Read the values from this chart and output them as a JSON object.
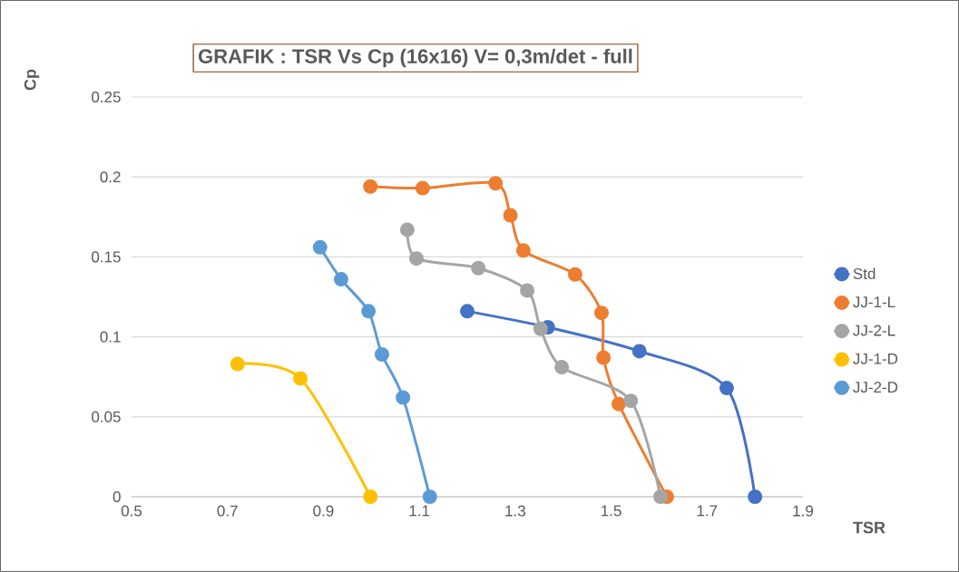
{
  "chart_data": {
    "type": "line",
    "title": "GRAFIK : TSR Vs Cp  (16x16) V= 0,3m/det - full",
    "xlabel": "TSR",
    "ylabel": "Cp",
    "xlim": [
      0.5,
      1.9
    ],
    "xticks": [
      0.5,
      0.7,
      0.9,
      1.1,
      1.3,
      1.5,
      1.7,
      1.9
    ],
    "ylim": [
      0,
      0.25
    ],
    "yticks": [
      0,
      0.05,
      0.1,
      0.15,
      0.2,
      0.25
    ],
    "grid": "y",
    "legend": "right",
    "marker": "circle",
    "line_style": "solid",
    "series": [
      {
        "name": "Std",
        "color": "#4472c4",
        "x": [
          1.2,
          1.368,
          1.559,
          1.741,
          1.8
        ],
        "values": [
          0.116,
          0.106,
          0.091,
          0.068,
          0
        ]
      },
      {
        "name": "JJ-1-L",
        "color": "#ed7d31",
        "x": [
          0.998,
          1.107,
          1.259,
          1.29,
          1.317,
          1.425,
          1.48,
          1.484,
          1.516,
          1.616
        ],
        "values": [
          0.194,
          0.193,
          0.196,
          0.176,
          0.154,
          0.139,
          0.115,
          0.087,
          0.058,
          0
        ]
      },
      {
        "name": "JJ-2-L",
        "color": "#a5a5a5",
        "x": [
          1.075,
          1.094,
          1.223,
          1.325,
          1.353,
          1.397,
          1.541,
          1.603
        ],
        "values": [
          0.167,
          0.149,
          0.143,
          0.129,
          0.105,
          0.081,
          0.06,
          0
        ]
      },
      {
        "name": "JJ-1-D",
        "color": "#ffc000",
        "x": [
          0.721,
          0.852,
          0.998
        ],
        "values": [
          0.083,
          0.074,
          0
        ]
      },
      {
        "name": "JJ-2-D",
        "color": "#5b9bd5",
        "x": [
          0.893,
          0.937,
          0.994,
          1.022,
          1.066,
          1.122
        ],
        "values": [
          0.156,
          0.136,
          0.116,
          0.089,
          0.062,
          0
        ]
      }
    ]
  }
}
